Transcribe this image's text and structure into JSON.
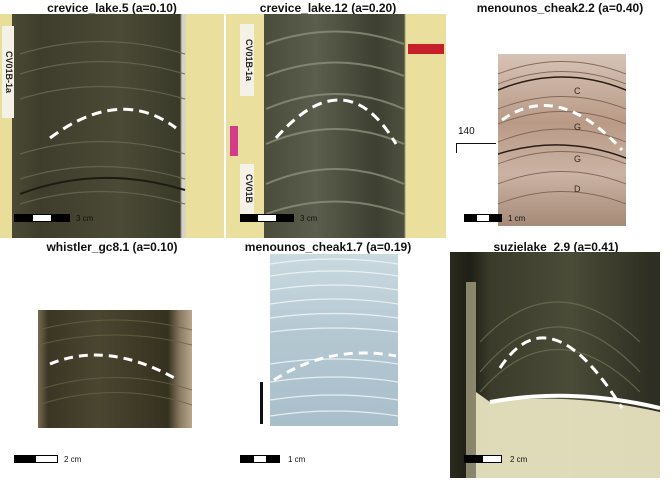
{
  "panels": [
    {
      "title": "crevice_lake.5 (a=0.10)",
      "scale_label": "3 cm"
    },
    {
      "title": "crevice_lake.12 (a=0.20)",
      "scale_label": "3 cm"
    },
    {
      "title": "menounos_cheak2.2 (a=0.40)",
      "scale_label": "1 cm"
    },
    {
      "title": "whistler_gc8.1 (a=0.10)",
      "scale_label": "2 cm"
    },
    {
      "title": "menounos_cheak1.7 (a=0.19)",
      "scale_label": "1 cm"
    },
    {
      "title": "suzielake_2.9 (a=0.41)",
      "scale_label": "2 cm"
    }
  ],
  "core_labels": {
    "crevice5_tag": "CV01B-1a",
    "crevice12_tag_top": "CV01B-1a",
    "crevice12_tag_bottom": "CV01B",
    "cheak22_marker": "140",
    "cheak22_layers": [
      "C",
      "G",
      "G",
      "D"
    ]
  },
  "colors": {
    "arc": "#ffffff",
    "sediment_dark": "#3b3a2a",
    "sediment_blue": "#b9ccd6",
    "sediment_tan": "#b89a86"
  }
}
